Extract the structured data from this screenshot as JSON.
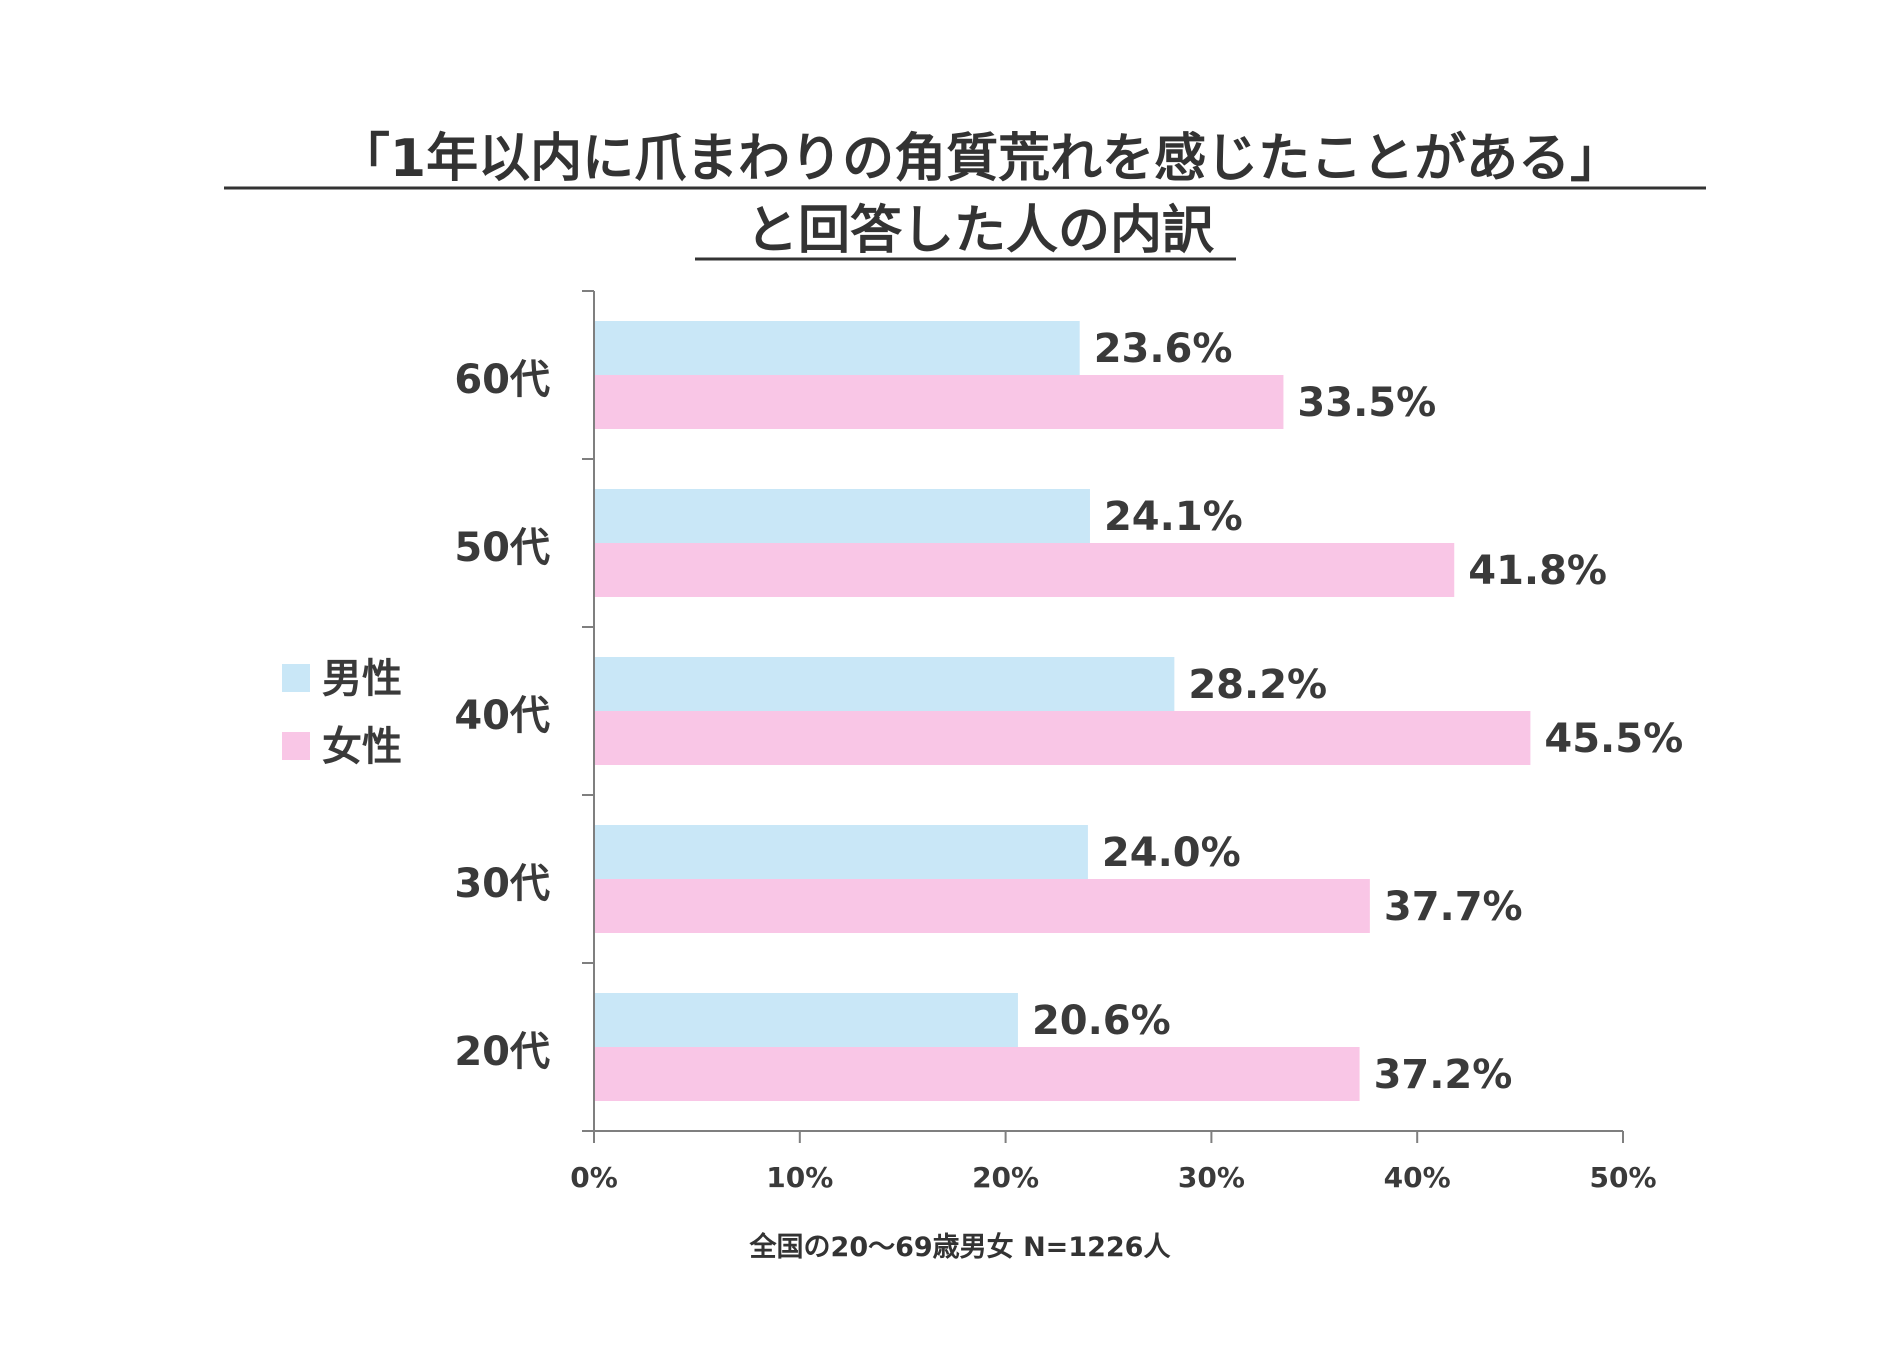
{
  "chart_data": {
    "type": "bar",
    "orientation": "horizontal",
    "title_lines": [
      "「1年以内に爪まわりの角質荒れを感じたことがある」",
      "と回答した人の内訳"
    ],
    "categories": [
      "60代",
      "50代",
      "40代",
      "30代",
      "20代"
    ],
    "series": [
      {
        "name": "男性",
        "color": "#c9e7f7",
        "values": [
          23.6,
          24.1,
          28.2,
          24.0,
          20.6
        ]
      },
      {
        "name": "女性",
        "color": "#f9c6e6",
        "values": [
          33.5,
          41.8,
          45.5,
          37.7,
          37.2
        ]
      }
    ],
    "data_labels": [
      [
        "23.6%",
        "24.1%",
        "28.2%",
        "24.0%",
        "20.6%"
      ],
      [
        "33.5%",
        "41.8%",
        "45.5%",
        "37.7%",
        "37.2%"
      ]
    ],
    "xlim": [
      0,
      50
    ],
    "xticks": [
      0,
      10,
      20,
      30,
      40,
      50
    ],
    "xtick_labels": [
      "0%",
      "10%",
      "20%",
      "30%",
      "40%",
      "50%"
    ],
    "grid": false,
    "legend_position": "left-middle",
    "footnote": "全国の20～69歳男女 N=1226人",
    "axis_color": "#7f7f7f"
  }
}
